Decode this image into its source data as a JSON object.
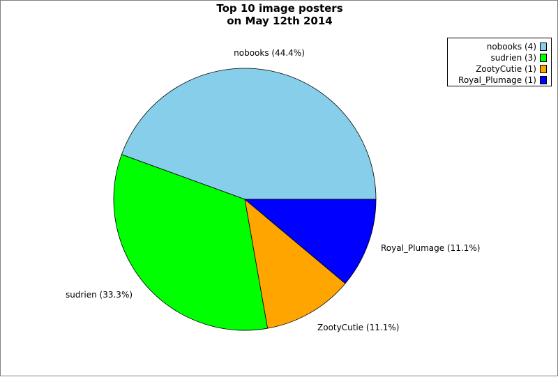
{
  "chart_data": {
    "type": "pie",
    "title_lines": [
      "Top 10 image posters",
      "on May 12th 2014"
    ],
    "slices": [
      {
        "name": "nobooks",
        "value": 4,
        "percent_label": "nobooks (44.4%)",
        "legend_label": "nobooks (4)",
        "color": "#87ceeb"
      },
      {
        "name": "sudrien",
        "value": 3,
        "percent_label": "sudrien (33.3%)",
        "legend_label": "sudrien (3)",
        "color": "#00ff00"
      },
      {
        "name": "ZootyCutie",
        "value": 1,
        "percent_label": "ZootyCutie (11.1%)",
        "legend_label": "ZootyCutie (1)",
        "color": "#ffa500"
      },
      {
        "name": "Royal_Plumage",
        "value": 1,
        "percent_label": "Royal_Plumage (11.1%)",
        "legend_label": "Royal_Plumage (1)",
        "color": "#0000ff"
      }
    ],
    "legend_position": "top-right",
    "start_angle_deg": 0,
    "direction": "counterclockwise"
  }
}
